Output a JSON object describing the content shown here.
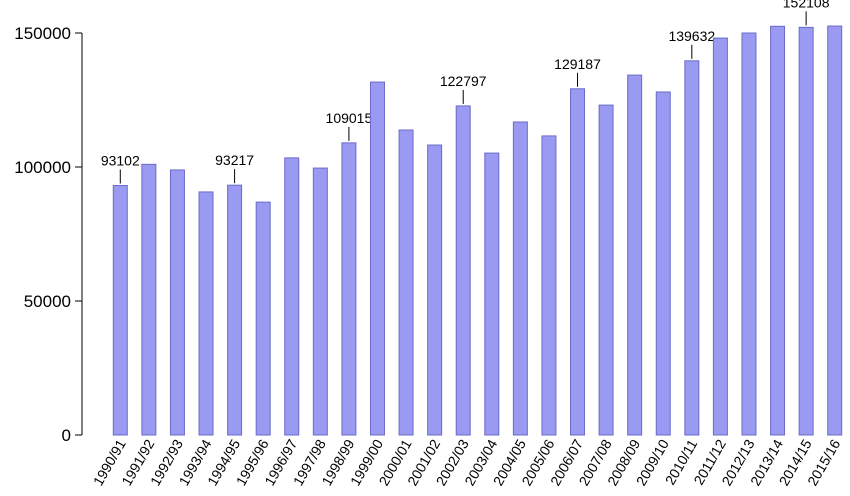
{
  "chart_data": {
    "type": "bar",
    "categories": [
      "1990/91",
      "1991/92",
      "1992/93",
      "1993/94",
      "1994/95",
      "1995/96",
      "1996/97",
      "1997/98",
      "1998/99",
      "1999/00",
      "2000/01",
      "2001/02",
      "2002/03",
      "2003/04",
      "2004/05",
      "2005/06",
      "2006/07",
      "2007/08",
      "2008/09",
      "2009/10",
      "2010/11",
      "2011/12",
      "2012/13",
      "2013/14",
      "2014/15",
      "2015/16"
    ],
    "values": [
      93102,
      101000,
      98900,
      90700,
      93217,
      86900,
      103400,
      99600,
      109015,
      131700,
      113800,
      108200,
      122797,
      105200,
      116800,
      111600,
      129187,
      123100,
      134300,
      128000,
      139632,
      148100,
      150000,
      152500,
      152108,
      152600
    ],
    "value_labels": [
      "93102",
      null,
      null,
      null,
      "93217",
      null,
      null,
      null,
      "109015",
      null,
      null,
      null,
      "122797",
      null,
      null,
      null,
      "129187",
      null,
      null,
      null,
      "139632",
      null,
      null,
      null,
      "152108",
      null
    ],
    "color": "#9a9af2",
    "ylim": [
      0,
      150000
    ],
    "yticks": [
      0,
      50000,
      100000,
      150000
    ]
  }
}
